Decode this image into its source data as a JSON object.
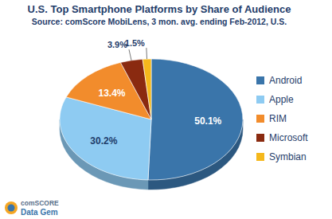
{
  "chart_data": {
    "type": "pie",
    "title": "U.S. Top Smartphone Platforms by Share of Audience",
    "subtitle": "Source: comScore MobiLens, 3 mon. avg. ending Feb-2012, U.S.",
    "categories": [
      "Android",
      "Apple",
      "RIM",
      "Microsoft",
      "Symbian"
    ],
    "values": [
      50.1,
      30.2,
      13.4,
      3.9,
      1.5
    ],
    "value_labels": [
      "50.1%",
      "30.2%",
      "13.4%",
      "3.9%",
      "1.5%"
    ],
    "colors": [
      "#3a75aa",
      "#8ecbf2",
      "#f28c2c",
      "#8a2a10",
      "#f5b81c"
    ],
    "data_labels": true,
    "legend": "right",
    "annotations": [
      "comSCORE",
      "Data Gem"
    ]
  }
}
